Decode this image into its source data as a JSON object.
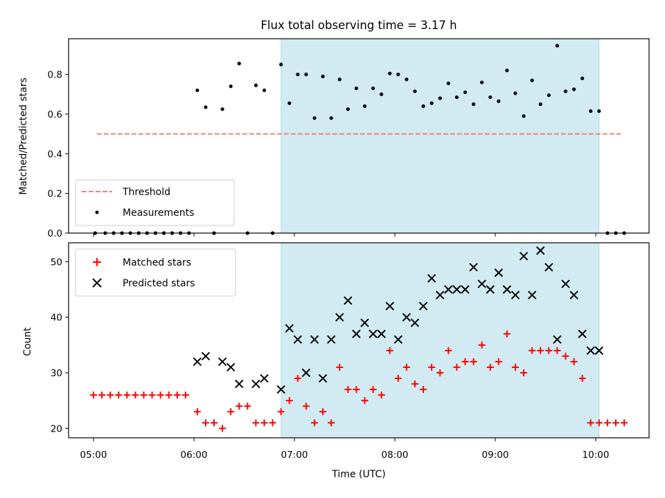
{
  "chart_data": [
    {
      "type": "scatter",
      "title": "Flux total observing time = 3.17 h",
      "xlabel": "",
      "ylabel": "Matched/Predicted stars",
      "ylim": [
        0,
        0.98
      ],
      "yticks": [
        "0.0",
        "0.2",
        "0.4",
        "0.6",
        "0.8"
      ],
      "xticks": [
        "05:00",
        "06:00",
        "07:00",
        "08:00",
        "09:00",
        "10:00"
      ],
      "shaded_interval": [
        "06:52",
        "10:02"
      ],
      "shade_color": "#add8e6",
      "threshold": {
        "name": "Threshold",
        "value": 0.5,
        "x_range": [
          "05:02",
          "10:15"
        ],
        "color": "#f08080"
      },
      "legend_position": "lower-left",
      "series": [
        {
          "name": "Measurements",
          "color": "#000000",
          "points": [
            [
              "05:01",
              0
            ],
            [
              "05:07",
              0
            ],
            [
              "05:12",
              0
            ],
            [
              "05:17",
              0
            ],
            [
              "05:22",
              0
            ],
            [
              "05:27",
              0
            ],
            [
              "05:32",
              0
            ],
            [
              "05:37",
              0
            ],
            [
              "05:42",
              0
            ],
            [
              "05:47",
              0
            ],
            [
              "05:52",
              0
            ],
            [
              "05:57",
              0
            ],
            [
              "06:02",
              0.72
            ],
            [
              "06:07",
              0.635
            ],
            [
              "06:12",
              0
            ],
            [
              "06:17",
              0.625
            ],
            [
              "06:22",
              0.74
            ],
            [
              "06:27",
              0.855
            ],
            [
              "06:32",
              0
            ],
            [
              "06:37",
              0.745
            ],
            [
              "06:42",
              0.72
            ],
            [
              "06:47",
              0
            ],
            [
              "06:52",
              0.85
            ],
            [
              "06:57",
              0.655
            ],
            [
              "07:02",
              0.8
            ],
            [
              "07:07",
              0.8
            ],
            [
              "07:12",
              0.58
            ],
            [
              "07:17",
              0.79
            ],
            [
              "07:22",
              0.58
            ],
            [
              "07:27",
              0.775
            ],
            [
              "07:32",
              0.625
            ],
            [
              "07:37",
              0.73
            ],
            [
              "07:42",
              0.64
            ],
            [
              "07:47",
              0.73
            ],
            [
              "07:52",
              0.7
            ],
            [
              "07:57",
              0.805
            ],
            [
              "08:02",
              0.8
            ],
            [
              "08:07",
              0.775
            ],
            [
              "08:12",
              0.715
            ],
            [
              "08:17",
              0.64
            ],
            [
              "08:22",
              0.655
            ],
            [
              "08:27",
              0.68
            ],
            [
              "08:32",
              0.755
            ],
            [
              "08:37",
              0.685
            ],
            [
              "08:42",
              0.71
            ],
            [
              "08:47",
              0.65
            ],
            [
              "08:52",
              0.76
            ],
            [
              "08:57",
              0.685
            ],
            [
              "09:02",
              0.665
            ],
            [
              "09:07",
              0.82
            ],
            [
              "09:12",
              0.705
            ],
            [
              "09:17",
              0.59
            ],
            [
              "09:22",
              0.77
            ],
            [
              "09:27",
              0.65
            ],
            [
              "09:32",
              0.695
            ],
            [
              "09:37",
              0.945
            ],
            [
              "09:42",
              0.715
            ],
            [
              "09:47",
              0.725
            ],
            [
              "09:52",
              0.78
            ],
            [
              "09:57",
              0.615
            ],
            [
              "10:02",
              0.615
            ],
            [
              "10:07",
              0
            ],
            [
              "10:12",
              0
            ],
            [
              "10:17",
              0
            ]
          ]
        }
      ]
    },
    {
      "type": "scatter",
      "title": "",
      "xlabel": "Time (UTC)",
      "ylabel": "Count",
      "ylim": [
        18.3,
        53.4
      ],
      "yticks": [
        "20",
        "30",
        "40",
        "50"
      ],
      "xticks": [
        "05:00",
        "06:00",
        "07:00",
        "08:00",
        "09:00",
        "10:00"
      ],
      "shaded_interval": [
        "06:52",
        "10:02"
      ],
      "shade_color": "#add8e6",
      "legend_position": "upper-left",
      "series": [
        {
          "name": "Matched stars",
          "color": "#ff0000",
          "marker": "plus",
          "points": [
            [
              "05:00",
              26
            ],
            [
              "05:05",
              26
            ],
            [
              "05:10",
              26
            ],
            [
              "05:15",
              26
            ],
            [
              "05:20",
              26
            ],
            [
              "05:25",
              26
            ],
            [
              "05:30",
              26
            ],
            [
              "05:35",
              26
            ],
            [
              "05:40",
              26
            ],
            [
              "05:45",
              26
            ],
            [
              "05:50",
              26
            ],
            [
              "05:55",
              26
            ],
            [
              "06:02",
              23
            ],
            [
              "06:07",
              21
            ],
            [
              "06:12",
              21
            ],
            [
              "06:17",
              20
            ],
            [
              "06:22",
              23
            ],
            [
              "06:27",
              24
            ],
            [
              "06:32",
              24
            ],
            [
              "06:37",
              21
            ],
            [
              "06:42",
              21
            ],
            [
              "06:47",
              21
            ],
            [
              "06:52",
              23
            ],
            [
              "06:57",
              25
            ],
            [
              "07:02",
              29
            ],
            [
              "07:07",
              24
            ],
            [
              "07:12",
              21
            ],
            [
              "07:17",
              23
            ],
            [
              "07:22",
              21
            ],
            [
              "07:27",
              31
            ],
            [
              "07:32",
              27
            ],
            [
              "07:37",
              27
            ],
            [
              "07:42",
              25
            ],
            [
              "07:47",
              27
            ],
            [
              "07:52",
              26
            ],
            [
              "07:57",
              34
            ],
            [
              "08:02",
              29
            ],
            [
              "08:07",
              31
            ],
            [
              "08:12",
              28
            ],
            [
              "08:17",
              27
            ],
            [
              "08:22",
              31
            ],
            [
              "08:27",
              30
            ],
            [
              "08:32",
              34
            ],
            [
              "08:37",
              31
            ],
            [
              "08:42",
              32
            ],
            [
              "08:47",
              32
            ],
            [
              "08:52",
              35
            ],
            [
              "08:57",
              31
            ],
            [
              "09:02",
              32
            ],
            [
              "09:07",
              37
            ],
            [
              "09:12",
              31
            ],
            [
              "09:17",
              30
            ],
            [
              "09:22",
              34
            ],
            [
              "09:27",
              34
            ],
            [
              "09:32",
              34
            ],
            [
              "09:37",
              34
            ],
            [
              "09:42",
              33
            ],
            [
              "09:47",
              32
            ],
            [
              "09:52",
              29
            ],
            [
              "09:57",
              21
            ],
            [
              "10:02",
              21
            ],
            [
              "10:07",
              21
            ],
            [
              "10:12",
              21
            ],
            [
              "10:17",
              21
            ]
          ]
        },
        {
          "name": "Predicted stars",
          "color": "#000000",
          "marker": "x",
          "points": [
            [
              "06:02",
              32
            ],
            [
              "06:07",
              33
            ],
            [
              "06:17",
              32
            ],
            [
              "06:22",
              31
            ],
            [
              "06:27",
              28
            ],
            [
              "06:37",
              28
            ],
            [
              "06:42",
              29
            ],
            [
              "06:52",
              27
            ],
            [
              "06:57",
              38
            ],
            [
              "07:02",
              36
            ],
            [
              "07:07",
              30
            ],
            [
              "07:12",
              36
            ],
            [
              "07:17",
              29
            ],
            [
              "07:22",
              36
            ],
            [
              "07:27",
              40
            ],
            [
              "07:32",
              43
            ],
            [
              "07:37",
              37
            ],
            [
              "07:42",
              39
            ],
            [
              "07:47",
              37
            ],
            [
              "07:52",
              37
            ],
            [
              "07:57",
              42
            ],
            [
              "08:02",
              36
            ],
            [
              "08:07",
              40
            ],
            [
              "08:12",
              39
            ],
            [
              "08:17",
              42
            ],
            [
              "08:22",
              47
            ],
            [
              "08:27",
              44
            ],
            [
              "08:32",
              45
            ],
            [
              "08:37",
              45
            ],
            [
              "08:42",
              45
            ],
            [
              "08:47",
              49
            ],
            [
              "08:52",
              46
            ],
            [
              "08:57",
              45
            ],
            [
              "09:02",
              48
            ],
            [
              "09:07",
              45
            ],
            [
              "09:12",
              44
            ],
            [
              "09:17",
              51
            ],
            [
              "09:22",
              44
            ],
            [
              "09:27",
              52
            ],
            [
              "09:32",
              49
            ],
            [
              "09:37",
              36
            ],
            [
              "09:42",
              46
            ],
            [
              "09:47",
              44
            ],
            [
              "09:52",
              37
            ],
            [
              "09:57",
              34
            ],
            [
              "10:02",
              34
            ]
          ]
        }
      ]
    }
  ]
}
